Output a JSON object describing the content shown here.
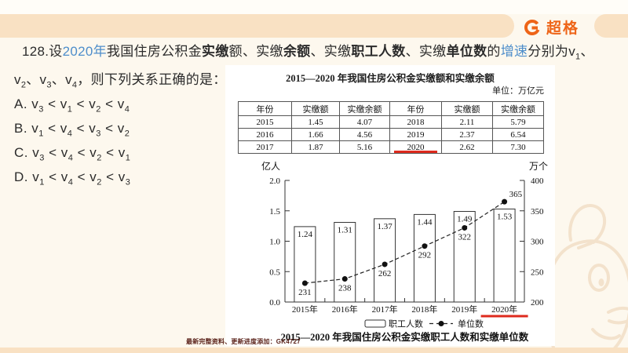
{
  "brand": {
    "name": "超格",
    "icon": "g-ring-logo",
    "color": "#EE6417"
  },
  "question": {
    "line1_segments": [
      {
        "t": "128.设"
      },
      {
        "t": "2020年",
        "style": "blue"
      },
      {
        "t": "我国住房公积金"
      },
      {
        "t": "实缴",
        "style": "bold"
      },
      {
        "t": "额、实缴"
      },
      {
        "t": "余额",
        "style": "bold"
      },
      {
        "t": "、实缴"
      },
      {
        "t": "职工人数",
        "style": "bold"
      },
      {
        "t": "、实缴"
      },
      {
        "t": "单位数",
        "style": "bold"
      },
      {
        "t": "的"
      },
      {
        "t": "增速",
        "style": "blue"
      },
      {
        "t": "分别为v1、"
      }
    ],
    "line2": "v2、v3、v4，则下列关系正确的是：",
    "options": [
      {
        "label": "A.",
        "expr": "v3 < v1 < v2 < v4"
      },
      {
        "label": "B.",
        "expr": "v1 < v4 < v3 < v2"
      },
      {
        "label": "C.",
        "expr": "v3 < v4 < v2 < v1"
      },
      {
        "label": "D.",
        "expr": "v1 < v4 < v2 < v3"
      }
    ]
  },
  "table": {
    "title": "2015—2020 年我国住房公积金实缴额和实缴余额",
    "unit_note": "单位：万亿元",
    "headers": [
      "年份",
      "实缴额",
      "实缴余额",
      "年份",
      "实缴额",
      "实缴余额"
    ],
    "rows": [
      [
        "2015",
        "1.45",
        "4.07",
        "2018",
        "2.11",
        "5.79"
      ],
      [
        "2016",
        "1.66",
        "4.56",
        "2019",
        "2.37",
        "6.54"
      ],
      [
        "2017",
        "1.87",
        "5.16",
        "2020",
        "2.62",
        "7.30"
      ]
    ],
    "highlight_value": "2020"
  },
  "chart_data": {
    "type": "bar+line",
    "title": "2015—2020 年我国住房公积金实缴职工人数和实缴单位数",
    "categories": [
      "2015年",
      "2016年",
      "2017年",
      "2018年",
      "2019年",
      "2020年"
    ],
    "series": [
      {
        "name": "职工人数",
        "type": "bar",
        "axis": "left",
        "unit": "亿人",
        "values": [
          1.24,
          1.31,
          1.37,
          1.44,
          1.49,
          1.53
        ]
      },
      {
        "name": "单位数",
        "type": "line",
        "axis": "right",
        "unit": "万个",
        "values": [
          231,
          238,
          262,
          292,
          322,
          365
        ]
      }
    ],
    "left_axis": {
      "label": "亿人",
      "min": 0,
      "max": 2.0,
      "ticks": [
        0.0,
        0.5,
        1.0,
        1.5,
        2.0
      ]
    },
    "right_axis": {
      "label": "万个",
      "min": 200,
      "max": 400,
      "ticks": [
        200,
        250,
        300,
        350,
        400
      ]
    },
    "legend": [
      "职工人数",
      "单位数"
    ],
    "legend_position": "bottom",
    "grid": false,
    "highlight_category": "2020年"
  },
  "watermark": "最新完整资料、更新进度添加：GK4727",
  "colors": {
    "accent_blue": "#4E8ECB",
    "brand_orange": "#EE6417",
    "highlight_red": "#DE2A1E",
    "band_peach": "#F9E1C3",
    "panel_white": "#FFFFFF"
  }
}
